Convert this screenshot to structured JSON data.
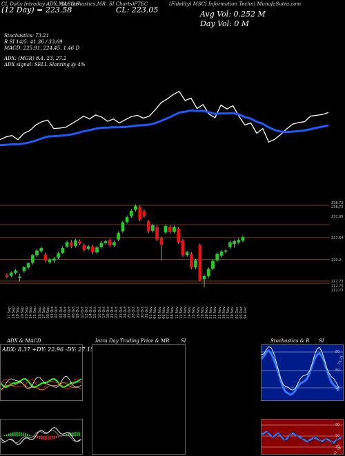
{
  "header": {
    "line1": "(Fidelity) MSCI Information Techn) MunafaSutra.com",
    "prefix_a": "CL Daily Intraday ADX,MACD,R",
    "prefix_b": "SI,Stochastics,MR",
    "prefix_c": "SI Charts)FTEC",
    "close_label": "CL: 223.05",
    "day_label": "(12 Day) = 223.58",
    "avg_vol": "Avg Vol: 0.252  M",
    "day_vol": "Day Vol: 0  M"
  },
  "info": {
    "stochastics": "Stochastics: 73.21",
    "rsi": "R                SI 14/5: 41.36  / 33.69",
    "macd": "MACD: 225.91,  224.45,  1.46  D",
    "adx": "ADX:                          (MGR) 8.4,  23,  27.2",
    "adx_signal": "ADX  signal: SELL  Slanting @ 4%"
  },
  "price_axis": [
    "238.72",
    "238.72",
    "231.99",
    "227.64",
    "220.2",
    "212.73",
    "212.73",
    "212.73"
  ],
  "dates": [
    "17 Sep",
    "18 Sep",
    "19 Sep",
    "20 Sep",
    "23 Sep",
    "24 Sep",
    "25 Sep",
    "26 Sep",
    "27 Sep",
    "30 Sep",
    "01 Oct",
    "02 Oct",
    "03 Oct",
    "04 Oct",
    "07 Oct",
    "08 Oct",
    "09 Oct",
    "10 Oct",
    "11 Oct",
    "14 Oct",
    "15 Oct",
    "16 Oct",
    "17 Oct",
    "18 Oct",
    "21 Oct",
    "22 Oct",
    "23 Oct",
    "24 Oct",
    "25 Oct",
    "28 Oct",
    "29 Oct",
    "30 Oct",
    "31 Oct",
    "01 Nov",
    "04 Nov",
    "05 Nov",
    "06 Nov",
    "07 Nov",
    "08 Nov",
    "11 Nov",
    "12 Nov",
    "13 Nov",
    "14 Nov",
    "15 Nov",
    "18 Nov",
    "19 Nov",
    "20 Nov",
    "21 Nov",
    "22 Nov",
    "25 Nov",
    "26 Nov",
    "27 Nov",
    "29 Nov",
    "02 Dec",
    "03 Dec",
    "04 Dec"
  ],
  "panels": {
    "adx_title": "ADX  & MACD",
    "adx_values": "ADX: 8.37  +DY: 22.96  -DY: 27.15",
    "intra_title": "Intra  Day Trading Price  & MR",
    "intra_suffix": "SI",
    "stoch_title": "Stochastics & R",
    "stoch_suffix": "SI",
    "stoch_levels": [
      "80",
      "50",
      "20"
    ],
    "stoch_value": "73.21",
    "rsi_levels": [
      "80",
      "50",
      "20"
    ],
    "rsi_value": "41.36"
  },
  "chart_data": {
    "type": "candlestick",
    "price_levels": [
      238.72,
      231.99,
      227.64,
      220.2,
      212.73
    ],
    "candles": [
      {
        "o": 214.8,
        "c": 214.2,
        "h": 215.4,
        "l": 213.6
      },
      {
        "o": 214.5,
        "c": 215.6,
        "h": 216.0,
        "l": 214.0
      },
      {
        "o": 215.6,
        "c": 216.3,
        "h": 216.8,
        "l": 215.0
      },
      {
        "o": 213.8,
        "c": 214.2,
        "h": 215.2,
        "l": 212.6
      },
      {
        "o": 216.2,
        "c": 217.4,
        "h": 217.8,
        "l": 215.6
      },
      {
        "o": 217.4,
        "c": 218.8,
        "h": 219.2,
        "l": 216.8
      },
      {
        "o": 219.0,
        "c": 221.6,
        "h": 222.0,
        "l": 218.4
      },
      {
        "o": 221.6,
        "c": 223.2,
        "h": 223.6,
        "l": 221.0
      },
      {
        "o": 223.0,
        "c": 224.0,
        "h": 224.6,
        "l": 222.4
      },
      {
        "o": 221.8,
        "c": 219.8,
        "h": 222.6,
        "l": 219.2
      },
      {
        "o": 219.2,
        "c": 220.0,
        "h": 220.6,
        "l": 218.6
      },
      {
        "o": 219.8,
        "c": 220.4,
        "h": 221.0,
        "l": 219.0
      },
      {
        "o": 220.8,
        "c": 222.2,
        "h": 222.8,
        "l": 220.2
      },
      {
        "o": 222.4,
        "c": 224.0,
        "h": 224.8,
        "l": 222.0
      },
      {
        "o": 224.6,
        "c": 226.0,
        "h": 226.6,
        "l": 224.0
      },
      {
        "o": 226.0,
        "c": 224.6,
        "h": 226.8,
        "l": 224.0
      },
      {
        "o": 224.8,
        "c": 226.6,
        "h": 227.2,
        "l": 224.2
      },
      {
        "o": 226.4,
        "c": 225.6,
        "h": 227.0,
        "l": 225.0
      },
      {
        "o": 225.0,
        "c": 223.4,
        "h": 225.6,
        "l": 222.8
      },
      {
        "o": 223.8,
        "c": 224.6,
        "h": 225.2,
        "l": 223.2
      },
      {
        "o": 224.6,
        "c": 222.6,
        "h": 225.2,
        "l": 222.0
      },
      {
        "o": 222.6,
        "c": 224.2,
        "h": 224.8,
        "l": 222.0
      },
      {
        "o": 224.4,
        "c": 225.8,
        "h": 226.4,
        "l": 223.8
      },
      {
        "o": 225.8,
        "c": 226.4,
        "h": 227.0,
        "l": 225.2
      },
      {
        "o": 226.8,
        "c": 225.0,
        "h": 227.4,
        "l": 224.4
      },
      {
        "o": 225.0,
        "c": 226.0,
        "h": 226.6,
        "l": 224.4
      },
      {
        "o": 227.0,
        "c": 229.2,
        "h": 229.8,
        "l": 226.4
      },
      {
        "o": 229.8,
        "c": 232.8,
        "h": 233.4,
        "l": 229.2
      },
      {
        "o": 233.0,
        "c": 234.6,
        "h": 235.2,
        "l": 232.4
      },
      {
        "o": 235.0,
        "c": 236.8,
        "h": 237.4,
        "l": 234.4
      },
      {
        "o": 237.2,
        "c": 238.4,
        "h": 239.0,
        "l": 236.6
      },
      {
        "o": 238.0,
        "c": 233.8,
        "h": 238.6,
        "l": 233.2
      },
      {
        "o": 236.6,
        "c": 235.0,
        "h": 237.4,
        "l": 234.4
      },
      {
        "o": 233.2,
        "c": 229.8,
        "h": 233.8,
        "l": 229.2
      },
      {
        "o": 230.0,
        "c": 231.8,
        "h": 232.4,
        "l": 229.4
      },
      {
        "o": 231.2,
        "c": 227.0,
        "h": 231.8,
        "l": 226.4
      },
      {
        "o": 227.4,
        "c": 225.2,
        "h": 228.0,
        "l": 219.8
      },
      {
        "o": 229.4,
        "c": 231.6,
        "h": 232.2,
        "l": 228.8
      },
      {
        "o": 231.2,
        "c": 229.6,
        "h": 231.8,
        "l": 229.0
      },
      {
        "o": 229.6,
        "c": 231.2,
        "h": 231.8,
        "l": 229.0
      },
      {
        "o": 230.6,
        "c": 226.0,
        "h": 231.2,
        "l": 225.4
      },
      {
        "o": 226.6,
        "c": 221.6,
        "h": 227.2,
        "l": 221.0
      },
      {
        "o": 221.6,
        "c": 222.6,
        "h": 223.2,
        "l": 221.0
      },
      {
        "o": 222.0,
        "c": 217.4,
        "h": 222.6,
        "l": 216.8
      },
      {
        "o": 217.4,
        "c": 219.8,
        "h": 220.4,
        "l": 216.8
      },
      {
        "o": 225.0,
        "c": 213.0,
        "h": 225.6,
        "l": 212.6
      },
      {
        "o": 213.4,
        "c": 214.4,
        "h": 215.0,
        "l": 210.6
      },
      {
        "o": 214.4,
        "c": 216.8,
        "h": 217.4,
        "l": 213.8
      },
      {
        "o": 217.0,
        "c": 219.6,
        "h": 220.2,
        "l": 216.4
      },
      {
        "o": 219.8,
        "c": 222.0,
        "h": 222.6,
        "l": 219.2
      },
      {
        "o": 221.4,
        "c": 222.8,
        "h": 223.4,
        "l": 220.8
      },
      {
        "o": 222.8,
        "c": 223.2,
        "h": 223.8,
        "l": 222.2
      },
      {
        "o": 224.4,
        "c": 226.0,
        "h": 226.6,
        "l": 223.8
      },
      {
        "o": 225.4,
        "c": 226.4,
        "h": 227.0,
        "l": 224.2
      },
      {
        "o": 226.0,
        "c": 226.8,
        "h": 227.4,
        "l": 225.4
      },
      {
        "o": 226.6,
        "c": 227.8,
        "h": 228.4,
        "l": 226.0
      }
    ]
  }
}
